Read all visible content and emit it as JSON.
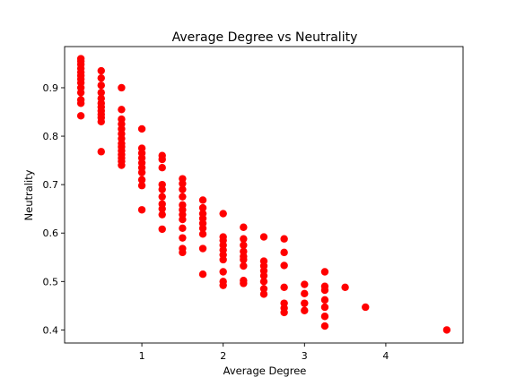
{
  "chart_data": {
    "type": "scatter",
    "title": "Average Degree vs Neutrality",
    "xlabel": "Average Degree",
    "ylabel": "Neutrality",
    "xlim": [
      0.05,
      4.95
    ],
    "ylim": [
      0.373,
      0.985
    ],
    "xticks": [
      1,
      2,
      3,
      4
    ],
    "xtick_labels": [
      "1",
      "2",
      "3",
      "4"
    ],
    "yticks": [
      0.4,
      0.5,
      0.6,
      0.7,
      0.8,
      0.9
    ],
    "ytick_labels": [
      "0.4",
      "0.5",
      "0.6",
      "0.7",
      "0.8",
      "0.9"
    ],
    "grid": false,
    "marker_color": "#ff0000",
    "points": [
      [
        0.25,
        0.96
      ],
      [
        0.25,
        0.955
      ],
      [
        0.25,
        0.948
      ],
      [
        0.25,
        0.94
      ],
      [
        0.25,
        0.932
      ],
      [
        0.25,
        0.925
      ],
      [
        0.25,
        0.918
      ],
      [
        0.25,
        0.91
      ],
      [
        0.25,
        0.9
      ],
      [
        0.25,
        0.89
      ],
      [
        0.25,
        0.875
      ],
      [
        0.25,
        0.868
      ],
      [
        0.25,
        0.842
      ],
      [
        0.5,
        0.935
      ],
      [
        0.5,
        0.92
      ],
      [
        0.5,
        0.905
      ],
      [
        0.5,
        0.89
      ],
      [
        0.5,
        0.878
      ],
      [
        0.5,
        0.868
      ],
      [
        0.5,
        0.86
      ],
      [
        0.5,
        0.852
      ],
      [
        0.5,
        0.845
      ],
      [
        0.5,
        0.838
      ],
      [
        0.5,
        0.83
      ],
      [
        0.5,
        0.768
      ],
      [
        0.75,
        0.9
      ],
      [
        0.75,
        0.855
      ],
      [
        0.75,
        0.835
      ],
      [
        0.75,
        0.825
      ],
      [
        0.75,
        0.815
      ],
      [
        0.75,
        0.805
      ],
      [
        0.75,
        0.795
      ],
      [
        0.75,
        0.785
      ],
      [
        0.75,
        0.778
      ],
      [
        0.75,
        0.77
      ],
      [
        0.75,
        0.762
      ],
      [
        0.75,
        0.755
      ],
      [
        0.75,
        0.748
      ],
      [
        0.75,
        0.74
      ],
      [
        1.0,
        0.815
      ],
      [
        1.0,
        0.775
      ],
      [
        1.0,
        0.765
      ],
      [
        1.0,
        0.755
      ],
      [
        1.0,
        0.745
      ],
      [
        1.0,
        0.735
      ],
      [
        1.0,
        0.725
      ],
      [
        1.0,
        0.71
      ],
      [
        1.0,
        0.698
      ],
      [
        1.0,
        0.648
      ],
      [
        1.25,
        0.76
      ],
      [
        1.25,
        0.752
      ],
      [
        1.25,
        0.735
      ],
      [
        1.25,
        0.7
      ],
      [
        1.25,
        0.69
      ],
      [
        1.25,
        0.675
      ],
      [
        1.25,
        0.66
      ],
      [
        1.25,
        0.65
      ],
      [
        1.25,
        0.638
      ],
      [
        1.25,
        0.608
      ],
      [
        1.5,
        0.712
      ],
      [
        1.5,
        0.702
      ],
      [
        1.5,
        0.69
      ],
      [
        1.5,
        0.675
      ],
      [
        1.5,
        0.658
      ],
      [
        1.5,
        0.648
      ],
      [
        1.5,
        0.638
      ],
      [
        1.5,
        0.628
      ],
      [
        1.5,
        0.61
      ],
      [
        1.5,
        0.59
      ],
      [
        1.5,
        0.568
      ],
      [
        1.5,
        0.56
      ],
      [
        1.75,
        0.668
      ],
      [
        1.75,
        0.652
      ],
      [
        1.75,
        0.64
      ],
      [
        1.75,
        0.63
      ],
      [
        1.75,
        0.62
      ],
      [
        1.75,
        0.61
      ],
      [
        1.75,
        0.598
      ],
      [
        1.75,
        0.568
      ],
      [
        1.75,
        0.515
      ],
      [
        2.0,
        0.64
      ],
      [
        2.0,
        0.592
      ],
      [
        2.0,
        0.585
      ],
      [
        2.0,
        0.575
      ],
      [
        2.0,
        0.565
      ],
      [
        2.0,
        0.555
      ],
      [
        2.0,
        0.545
      ],
      [
        2.0,
        0.52
      ],
      [
        2.0,
        0.5
      ],
      [
        2.0,
        0.492
      ],
      [
        2.25,
        0.612
      ],
      [
        2.25,
        0.588
      ],
      [
        2.25,
        0.575
      ],
      [
        2.25,
        0.562
      ],
      [
        2.25,
        0.552
      ],
      [
        2.25,
        0.545
      ],
      [
        2.25,
        0.532
      ],
      [
        2.25,
        0.502
      ],
      [
        2.25,
        0.496
      ],
      [
        2.5,
        0.592
      ],
      [
        2.5,
        0.542
      ],
      [
        2.5,
        0.532
      ],
      [
        2.5,
        0.522
      ],
      [
        2.5,
        0.512
      ],
      [
        2.5,
        0.5
      ],
      [
        2.5,
        0.485
      ],
      [
        2.5,
        0.474
      ],
      [
        2.75,
        0.588
      ],
      [
        2.75,
        0.56
      ],
      [
        2.75,
        0.533
      ],
      [
        2.75,
        0.488
      ],
      [
        2.75,
        0.455
      ],
      [
        2.75,
        0.445
      ],
      [
        2.75,
        0.436
      ],
      [
        3.0,
        0.494
      ],
      [
        3.0,
        0.475
      ],
      [
        3.0,
        0.455
      ],
      [
        3.0,
        0.44
      ],
      [
        3.25,
        0.52
      ],
      [
        3.25,
        0.49
      ],
      [
        3.25,
        0.482
      ],
      [
        3.25,
        0.462
      ],
      [
        3.25,
        0.447
      ],
      [
        3.25,
        0.428
      ],
      [
        3.25,
        0.408
      ],
      [
        3.5,
        0.488
      ],
      [
        3.75,
        0.447
      ],
      [
        4.75,
        0.4
      ]
    ]
  }
}
